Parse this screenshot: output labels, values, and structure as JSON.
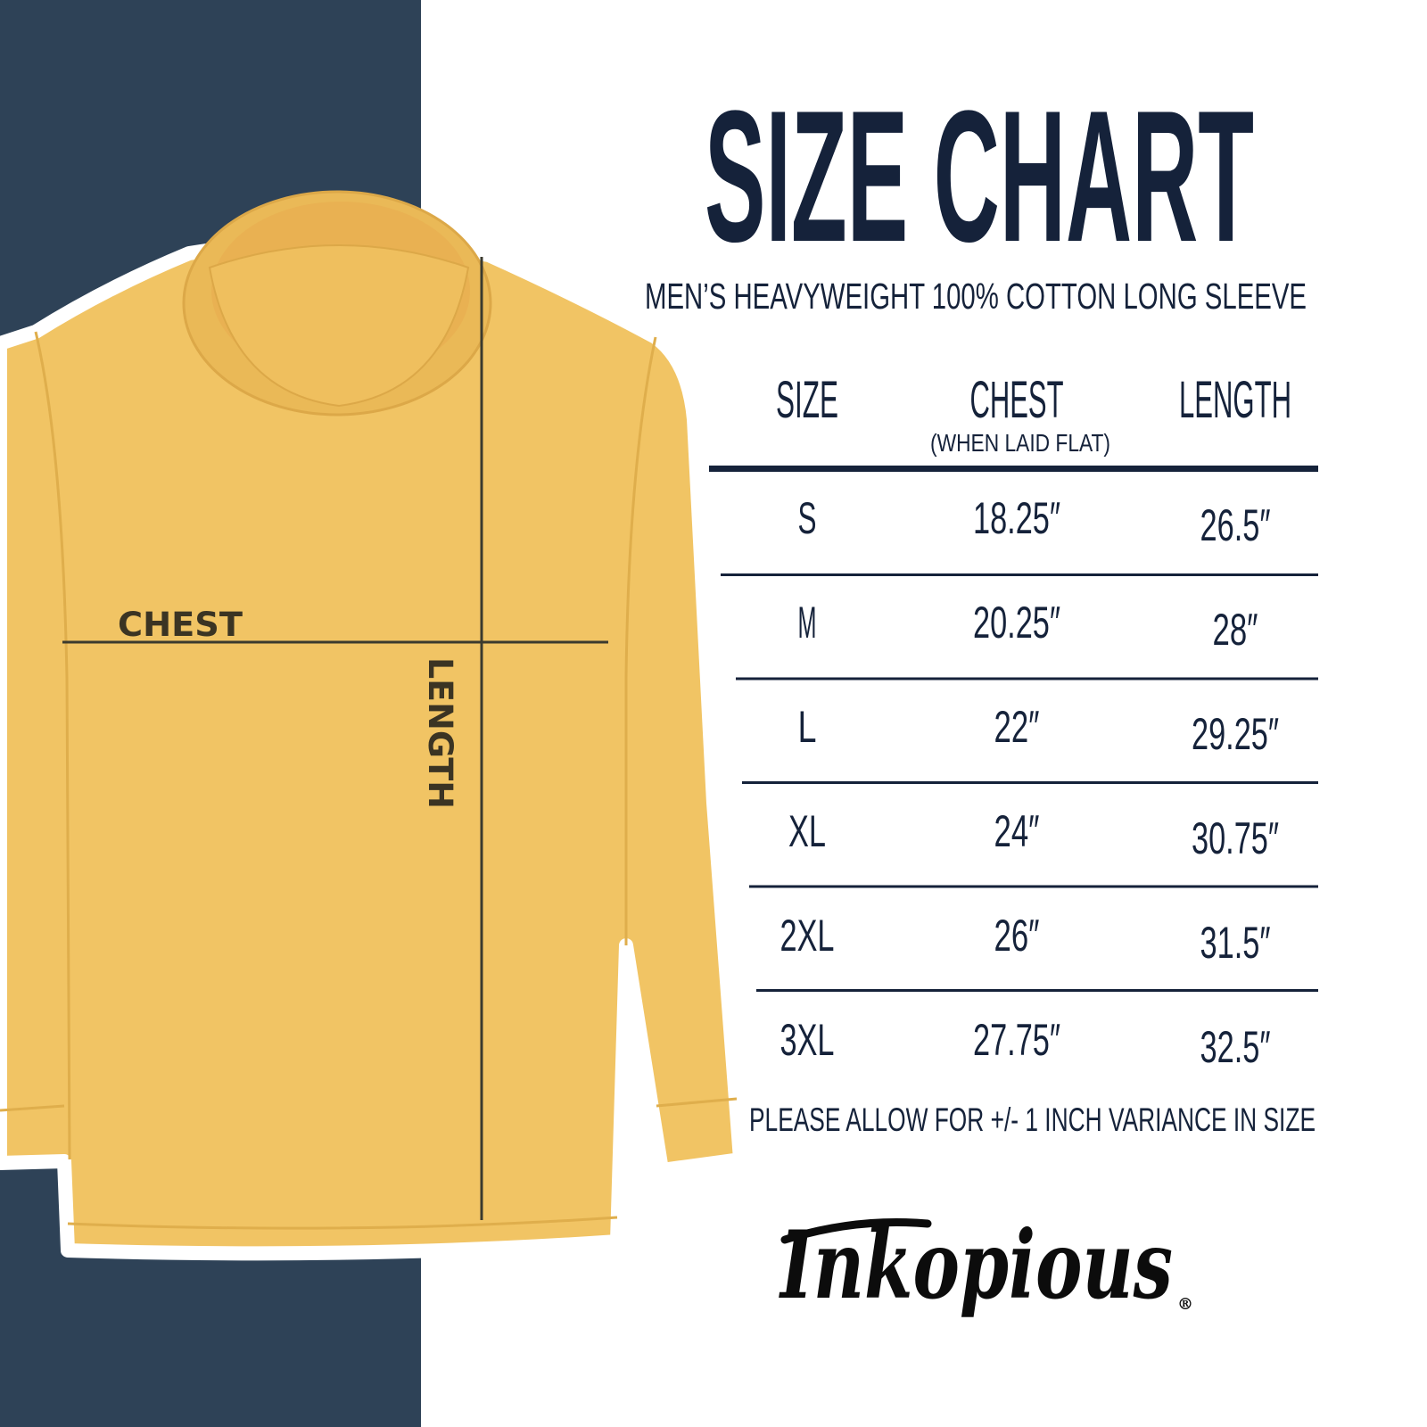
{
  "title": "SIZE CHART",
  "subtitle": "MEN’S HEAVYWEIGHT 100% COTTON LONG SLEEVE",
  "table": {
    "headers": {
      "size": "SIZE",
      "chest": "CHEST",
      "chest_note": "(WHEN LAID FLAT)",
      "length": "LENGTH"
    },
    "rows": [
      {
        "size": "S",
        "chest": "18.25″",
        "length": "26.5″"
      },
      {
        "size": "M",
        "chest": "20.25″",
        "length": "28″"
      },
      {
        "size": "L",
        "chest": "22″",
        "length": "29.25″"
      },
      {
        "size": "XL",
        "chest": "24″",
        "length": "30.75″"
      },
      {
        "size": "2XL",
        "chest": "26″",
        "length": "31.5″"
      },
      {
        "size": "3XL",
        "chest": "27.75″",
        "length": "32.5″"
      }
    ]
  },
  "footnote": "PLEASE ALLOW FOR +/- 1 INCH VARIANCE IN SIZE",
  "shirt": {
    "chest_label": "CHEST",
    "length_label": "LENGTH",
    "color": "#f1c464"
  },
  "brand": {
    "logo_text": "Inkopious",
    "registered": "®"
  },
  "colors": {
    "navy_panel": "#2e4257",
    "text": "#15223a"
  }
}
